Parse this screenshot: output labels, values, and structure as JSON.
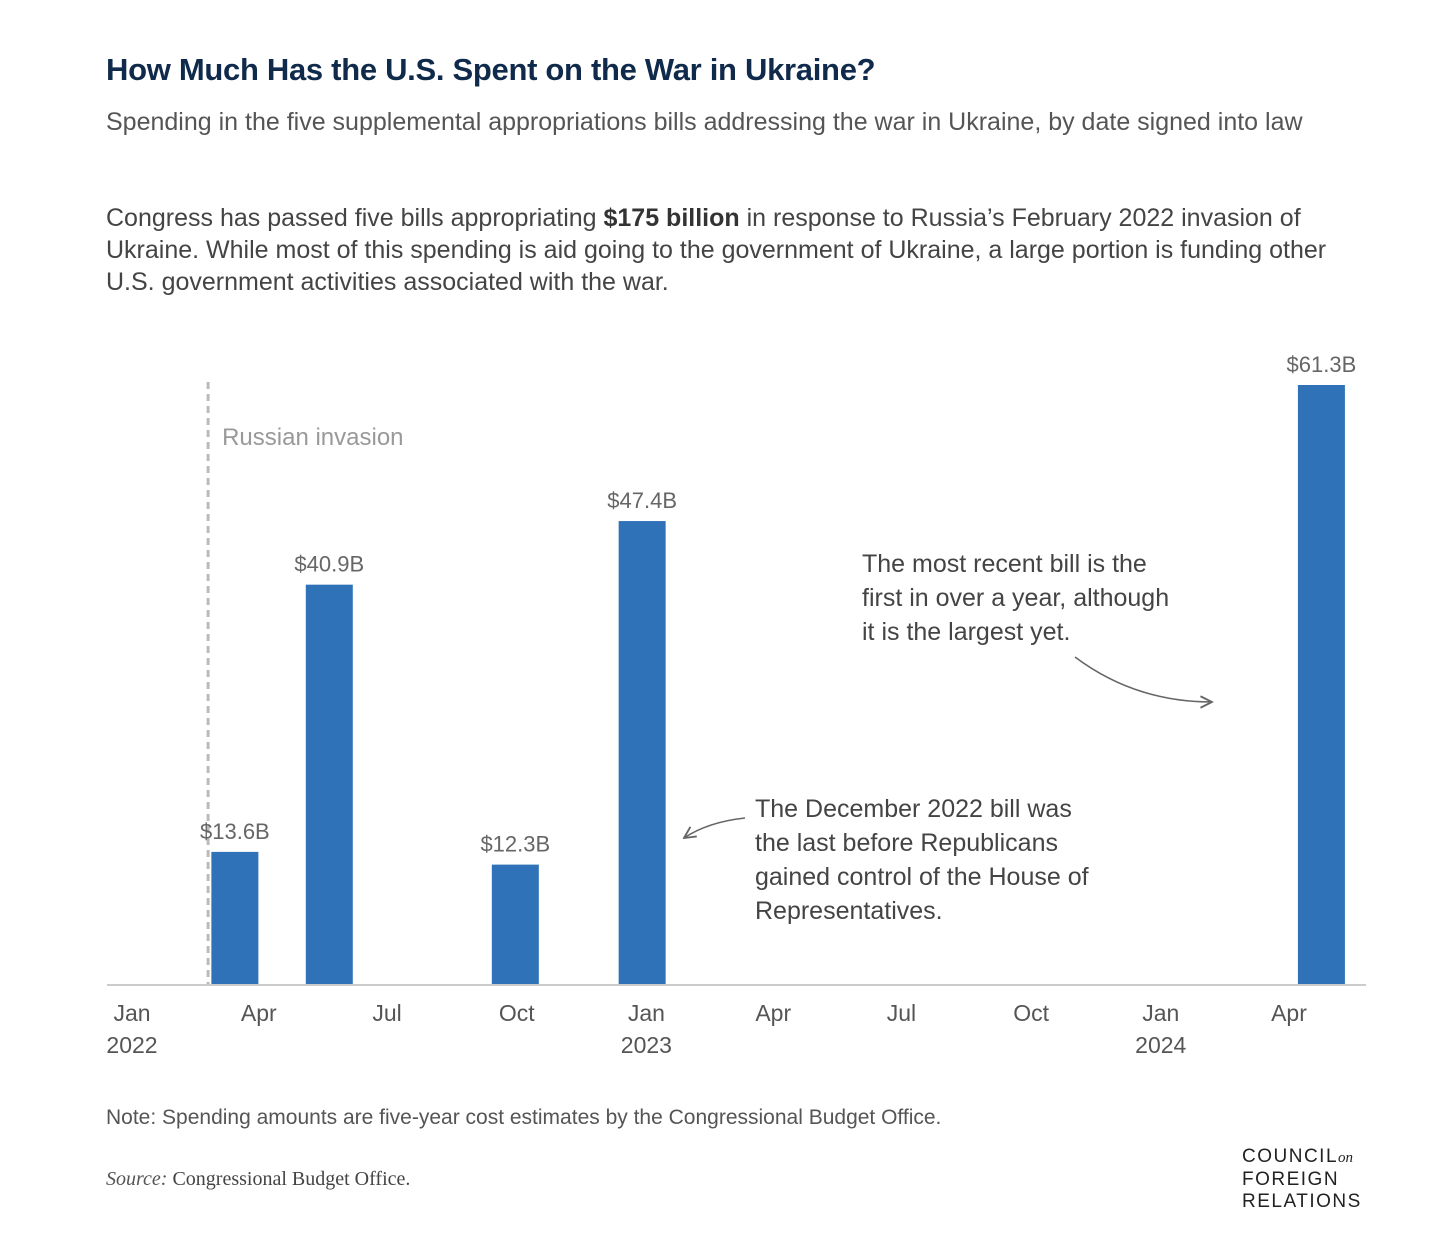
{
  "header": {
    "title": "How Much Has the U.S. Spent on the War in Ukraine?",
    "subtitle": "Spending in the five supplemental appropriations bills addressing the war in Ukraine, by date signed into law",
    "summary_pre": "Congress has passed five bills appropriating ",
    "summary_bold": "$175 billion",
    "summary_post": " in response to Russia’s February 2022 invasion of Ukraine. While most of this spending is aid going to the government of Ukraine, a large portion is funding other U.S. government activities associated with the war."
  },
  "chart_data": {
    "type": "bar",
    "x_axis": {
      "type": "date",
      "range": [
        "2022-01-01",
        "2024-06-01"
      ],
      "ticks": [
        {
          "date": "2022-01-01",
          "label": "Jan",
          "year": "2022"
        },
        {
          "date": "2022-04-01",
          "label": "Apr",
          "year": ""
        },
        {
          "date": "2022-07-01",
          "label": "Jul",
          "year": ""
        },
        {
          "date": "2022-10-01",
          "label": "Oct",
          "year": ""
        },
        {
          "date": "2023-01-01",
          "label": "Jan",
          "year": "2023"
        },
        {
          "date": "2023-04-01",
          "label": "Apr",
          "year": ""
        },
        {
          "date": "2023-07-01",
          "label": "Jul",
          "year": ""
        },
        {
          "date": "2023-10-01",
          "label": "Oct",
          "year": ""
        },
        {
          "date": "2024-01-01",
          "label": "Jan",
          "year": "2024"
        },
        {
          "date": "2024-04-01",
          "label": "Apr",
          "year": ""
        }
      ]
    },
    "ylim": [
      0,
      61.3
    ],
    "grid": false,
    "bars": [
      {
        "date": "2022-03-15",
        "value": 13.6,
        "label": "$13.6B"
      },
      {
        "date": "2022-05-21",
        "value": 40.9,
        "label": "$40.9B"
      },
      {
        "date": "2022-09-30",
        "value": 12.3,
        "label": "$12.3B"
      },
      {
        "date": "2022-12-29",
        "value": 47.4,
        "label": "$47.4B"
      },
      {
        "date": "2024-04-24",
        "value": 61.3,
        "label": "$61.3B"
      }
    ],
    "reference_line": {
      "date": "2022-02-24",
      "label": "Russian invasion"
    },
    "annotations": [
      {
        "lines": [
          "The most recent bill is the",
          "first in over a year, although",
          "it is the largest yet."
        ],
        "points_to": "2024-04-24"
      },
      {
        "lines": [
          "The December 2022 bill was",
          "the last before Republicans",
          "gained control of the House of",
          "Representatives."
        ],
        "points_to": "2022-12-29"
      }
    ],
    "colors": {
      "bar": "#2f72b8",
      "reference": "#bbbbbb",
      "axis": "#cccccc"
    }
  },
  "footer": {
    "note": "Note: Spending amounts are five-year cost estimates by the Congressional Budget Office.",
    "source_label": "Source:",
    "source_text": " Congressional Budget Office.",
    "logo_line1": "COUNCIL",
    "logo_on": "on",
    "logo_line2": "FOREIGN",
    "logo_line3": "RELATIONS"
  }
}
